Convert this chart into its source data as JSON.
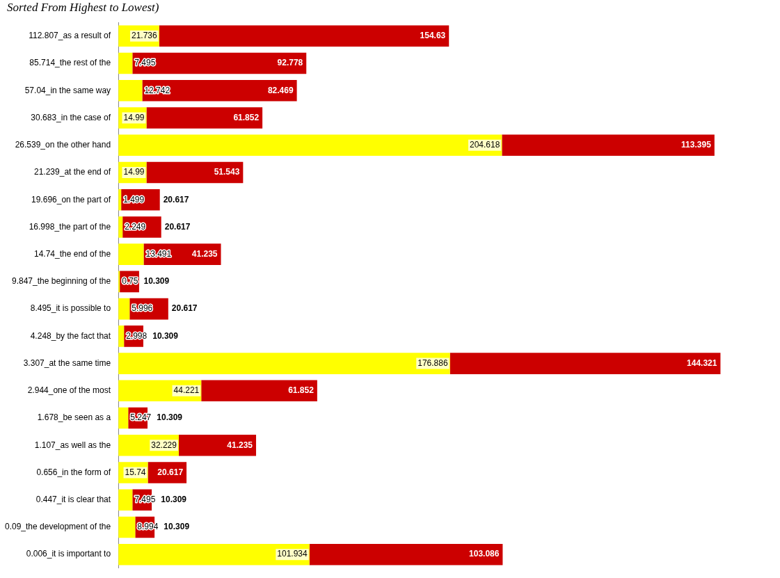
{
  "chart_data": {
    "type": "bar",
    "orientation": "horizontal",
    "stacked": true,
    "subtitle": "Sorted From Highest to Lowest)",
    "categories": [
      "112.807_as a result of",
      "85.714_the rest of the",
      "57.04_in the same way",
      "30.683_in the case of",
      "26.539_on the other hand",
      "21.239_at the end of",
      "19.696_on the part of",
      "16.998_the part of the",
      "14.74_the end of the",
      "9.847_the beginning of the",
      "8.495_it is possible to",
      "4.248_by the fact that",
      "3.307_at the same time",
      "2.944_one of the most",
      "1.678_be seen as a",
      "1.107_as well as the",
      "0.656_in the form of",
      "0.447_it is clear that",
      "0.09_the development of the",
      "0.006_it is important to"
    ],
    "data_labels": true,
    "series": [
      {
        "color": "#ffff00",
        "values": [
          21.736,
          7.495,
          12.742,
          14.99,
          204.618,
          14.99,
          1.499,
          2.249,
          13.491,
          0.75,
          5.996,
          2.998,
          176.886,
          44.221,
          5.247,
          32.229,
          15.74,
          7.495,
          8.994,
          101.934
        ]
      },
      {
        "color": "#cc0000",
        "values": [
          154.63,
          92.778,
          82.469,
          61.852,
          113.395,
          51.543,
          20.617,
          20.617,
          41.235,
          10.309,
          20.617,
          10.309,
          144.321,
          61.852,
          10.309,
          41.235,
          20.617,
          10.309,
          10.309,
          103.086
        ]
      }
    ]
  }
}
